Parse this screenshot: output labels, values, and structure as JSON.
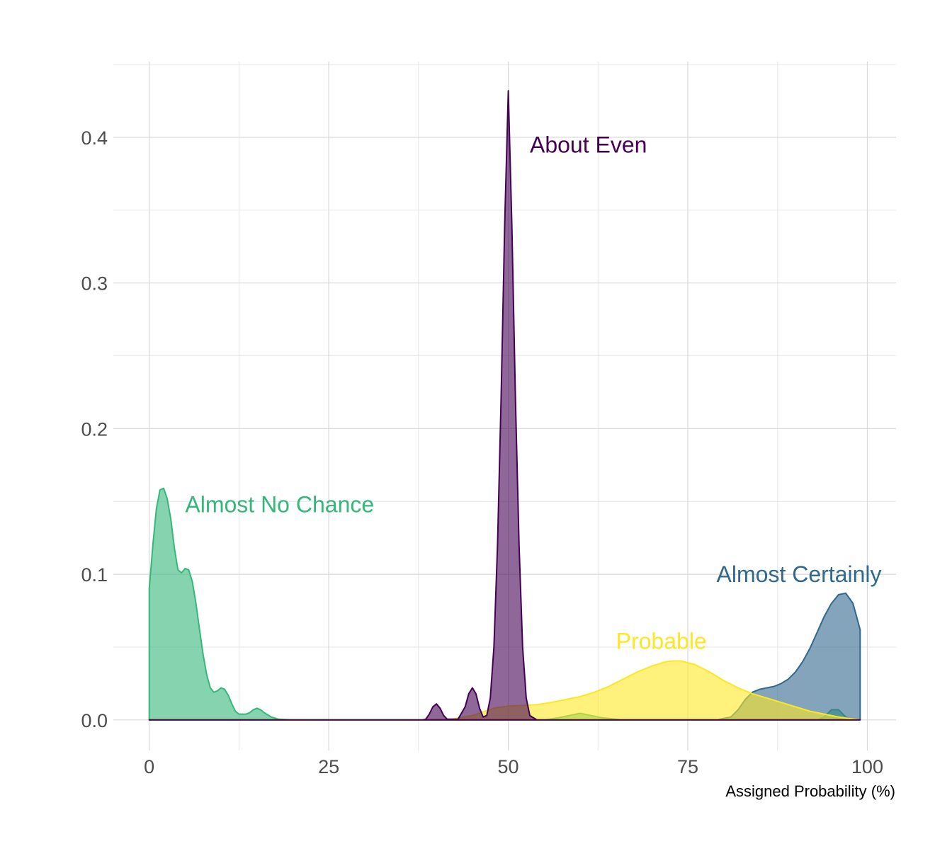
{
  "chart_data": {
    "type": "area",
    "xlabel": "Assigned Probability (%)",
    "ylabel": "",
    "xlim": [
      -5,
      104
    ],
    "ylim": [
      -0.021,
      0.452
    ],
    "x_ticks": [
      0,
      25,
      50,
      75,
      100
    ],
    "y_ticks": [
      0.0,
      0.1,
      0.2,
      0.3,
      0.4
    ],
    "x_tick_labels": [
      "0",
      "25",
      "50",
      "75",
      "100"
    ],
    "y_tick_labels": [
      "0.0",
      "0.1",
      "0.2",
      "0.3",
      "0.4"
    ],
    "grid": true,
    "legend": "none",
    "series": [
      {
        "name": "Almost No Chance",
        "color": "#35B779",
        "label_x": 5,
        "label_y": 0.148,
        "points": [
          [
            0,
            0.09
          ],
          [
            0.5,
            0.12
          ],
          [
            1,
            0.145
          ],
          [
            1.5,
            0.158
          ],
          [
            2,
            0.159
          ],
          [
            2.5,
            0.152
          ],
          [
            3,
            0.138
          ],
          [
            3.5,
            0.118
          ],
          [
            4,
            0.103
          ],
          [
            4.5,
            0.101
          ],
          [
            5,
            0.104
          ],
          [
            5.5,
            0.103
          ],
          [
            6,
            0.095
          ],
          [
            6.5,
            0.08
          ],
          [
            7,
            0.062
          ],
          [
            7.5,
            0.045
          ],
          [
            8,
            0.031
          ],
          [
            8.5,
            0.022
          ],
          [
            9,
            0.019
          ],
          [
            9.5,
            0.02
          ],
          [
            10,
            0.022
          ],
          [
            10.5,
            0.021
          ],
          [
            11,
            0.017
          ],
          [
            11.5,
            0.011
          ],
          [
            12,
            0.006
          ],
          [
            12.5,
            0.004
          ],
          [
            13,
            0.004
          ],
          [
            13.5,
            0.004
          ],
          [
            14,
            0.005
          ],
          [
            14.5,
            0.007
          ],
          [
            15,
            0.008
          ],
          [
            15.5,
            0.007
          ],
          [
            16,
            0.005
          ],
          [
            17,
            0.002
          ],
          [
            18,
            0.0005
          ],
          [
            20,
            0
          ],
          [
            40,
            0
          ],
          [
            55,
            0
          ],
          [
            57,
            0.0015
          ],
          [
            60,
            0.0045
          ],
          [
            63,
            0.0015
          ],
          [
            66,
            0
          ],
          [
            93,
            0
          ],
          [
            94,
            0.002
          ],
          [
            95,
            0.007
          ],
          [
            96,
            0.007
          ],
          [
            97,
            0.002
          ],
          [
            98,
            0
          ],
          [
            99,
            0
          ]
        ]
      },
      {
        "name": "Almost Certainly",
        "color": "#31688E",
        "label_x": 79,
        "label_y": 0.1,
        "points": [
          [
            0,
            0
          ],
          [
            79,
            0
          ],
          [
            81,
            0.002
          ],
          [
            82,
            0.007
          ],
          [
            83,
            0.014
          ],
          [
            84,
            0.019
          ],
          [
            85,
            0.021
          ],
          [
            86,
            0.022
          ],
          [
            87,
            0.023
          ],
          [
            88,
            0.025
          ],
          [
            89,
            0.028
          ],
          [
            90,
            0.033
          ],
          [
            91,
            0.04
          ],
          [
            92,
            0.049
          ],
          [
            93,
            0.06
          ],
          [
            94,
            0.071
          ],
          [
            95,
            0.08
          ],
          [
            96,
            0.086
          ],
          [
            97,
            0.087
          ],
          [
            98,
            0.08
          ],
          [
            99,
            0.062
          ]
        ]
      },
      {
        "name": "Probable",
        "color": "#FDE725",
        "label_x": 65,
        "label_y": 0.054,
        "points": [
          [
            0,
            0
          ],
          [
            38,
            0
          ],
          [
            42,
            0.0005
          ],
          [
            45,
            0.003
          ],
          [
            48,
            0.008
          ],
          [
            50,
            0.0095
          ],
          [
            52,
            0.01
          ],
          [
            54,
            0.0105
          ],
          [
            56,
            0.012
          ],
          [
            58,
            0.014
          ],
          [
            60,
            0.016
          ],
          [
            62,
            0.019
          ],
          [
            64,
            0.023
          ],
          [
            66,
            0.028
          ],
          [
            68,
            0.033
          ],
          [
            70,
            0.037
          ],
          [
            72,
            0.04
          ],
          [
            73,
            0.0405
          ],
          [
            74,
            0.0405
          ],
          [
            76,
            0.038
          ],
          [
            78,
            0.033
          ],
          [
            80,
            0.027
          ],
          [
            82,
            0.022
          ],
          [
            84,
            0.018
          ],
          [
            86,
            0.015
          ],
          [
            88,
            0.012
          ],
          [
            90,
            0.009
          ],
          [
            92,
            0.006
          ],
          [
            94,
            0.004
          ],
          [
            96,
            0.002
          ],
          [
            99,
            0
          ]
        ]
      },
      {
        "name": "About Even",
        "color": "#440154",
        "label_x": 53,
        "label_y": 0.395,
        "points": [
          [
            0,
            0
          ],
          [
            38,
            0
          ],
          [
            38.5,
            0.0005
          ],
          [
            39,
            0.004
          ],
          [
            39.5,
            0.009
          ],
          [
            40,
            0.011
          ],
          [
            40.5,
            0.008
          ],
          [
            41,
            0.003
          ],
          [
            41.5,
            0.0005
          ],
          [
            43,
            0.0005
          ],
          [
            44,
            0.009
          ],
          [
            44.5,
            0.018
          ],
          [
            45,
            0.022
          ],
          [
            45.5,
            0.018
          ],
          [
            46,
            0.008
          ],
          [
            46.5,
            0.002
          ],
          [
            47,
            0.003
          ],
          [
            47.5,
            0.015
          ],
          [
            48,
            0.05
          ],
          [
            48.5,
            0.12
          ],
          [
            49,
            0.22
          ],
          [
            49.5,
            0.34
          ],
          [
            50,
            0.432
          ],
          [
            50.5,
            0.34
          ],
          [
            51,
            0.22
          ],
          [
            51.5,
            0.12
          ],
          [
            52,
            0.05
          ],
          [
            52.5,
            0.015
          ],
          [
            53,
            0.003
          ],
          [
            54,
            0
          ],
          [
            95,
            0
          ],
          [
            99,
            0
          ]
        ]
      }
    ]
  }
}
